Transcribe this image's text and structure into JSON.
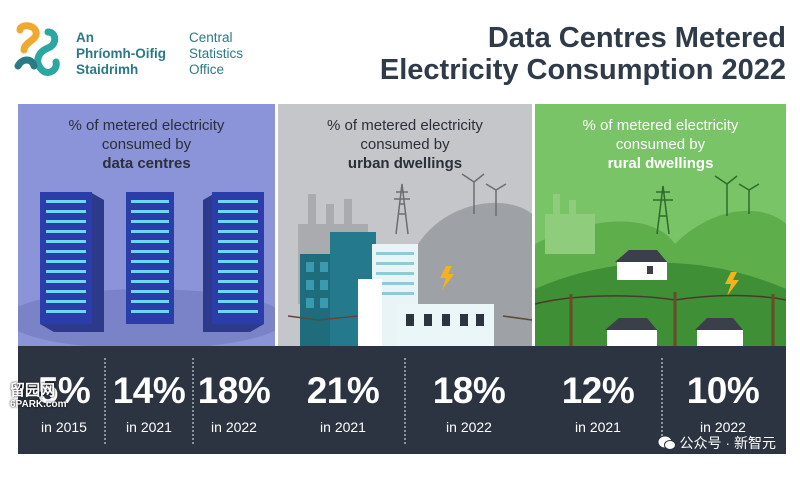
{
  "header": {
    "org_irish": [
      "An",
      "Phríomh-Oifig",
      "Staidrimh"
    ],
    "org_english": [
      "Central",
      "Statistics",
      "Office"
    ],
    "title_lines": [
      "Data Centres Metered",
      "Electricity Consumption 2022"
    ]
  },
  "panels": [
    {
      "label": "% of metered electricity",
      "label2": "consumed by",
      "subject": "data centres",
      "color": "#8b93d9"
    },
    {
      "label": "% of metered electricity",
      "label2": "consumed by",
      "subject": "urban dwellings",
      "color": "#c4c6c9"
    },
    {
      "label": "% of metered electricity",
      "label2": "consumed by",
      "subject": "rural dwellings",
      "color": "#79c466"
    }
  ],
  "stats": [
    {
      "value": "5%",
      "year": "in 2015"
    },
    {
      "value": "14%",
      "year": "in 2021"
    },
    {
      "value": "18%",
      "year": "in 2022"
    },
    {
      "value": "21%",
      "year": "in 2021"
    },
    {
      "value": "18%",
      "year": "in 2022"
    },
    {
      "value": "12%",
      "year": "in 2021"
    },
    {
      "value": "10%",
      "year": "in 2022"
    }
  ],
  "watermarks": {
    "left_top": "留园网",
    "left_bottom": "6PARK.com",
    "right": "公众号 · 新智元"
  },
  "colors": {
    "brand_teal": "#2a7a84",
    "title_dark": "#2f3b48",
    "stats_bg": "#2b3440",
    "datacentre_panel": "#8b93d9",
    "urban_panel": "#c4c6c9",
    "rural_panel": "#79c466"
  },
  "icons": [
    "cso-logo-icon",
    "server-rack-icon",
    "factory-icon",
    "pylon-icon",
    "wind-turbine-icon",
    "lightning-bolt-icon",
    "house-icon",
    "wechat-icon"
  ]
}
